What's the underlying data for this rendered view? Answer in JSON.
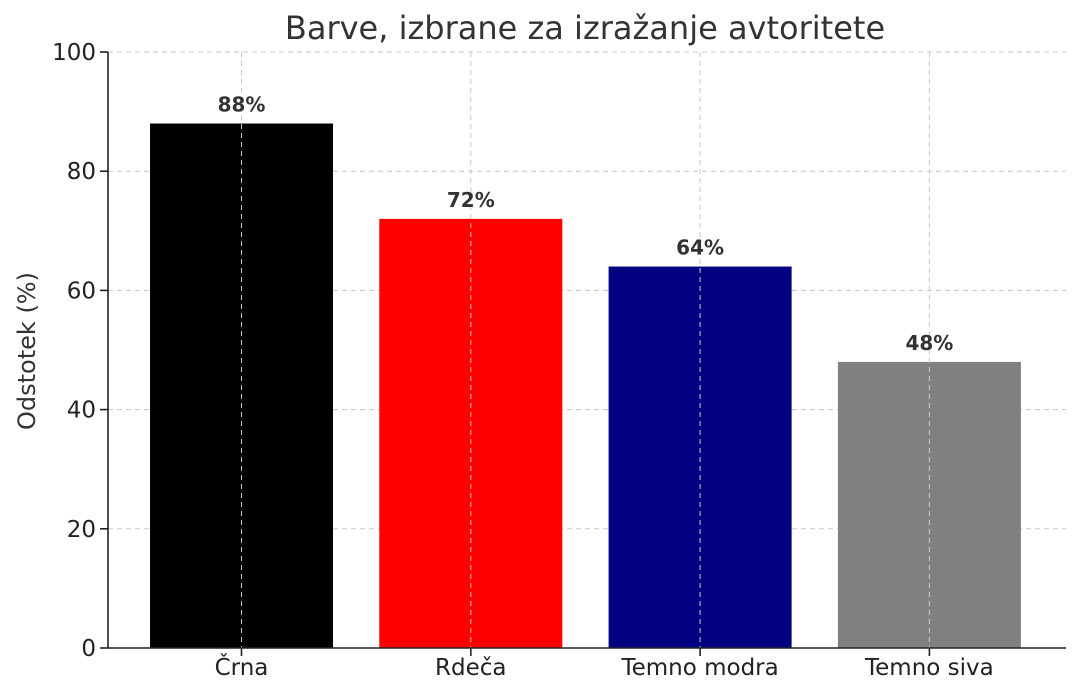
{
  "chart_data": {
    "type": "bar",
    "title": "Barve, izbrane za izražanje avtoritete",
    "xlabel": "",
    "ylabel": "Odstotek (%)",
    "categories": [
      "Črna",
      "Rdeča",
      "Temno modra",
      "Temno siva"
    ],
    "values": [
      88,
      72,
      64,
      48
    ],
    "value_labels": [
      "88%",
      "72%",
      "64%",
      "48%"
    ],
    "bar_colors": [
      "#000000",
      "#ff0000",
      "#000080",
      "#808080"
    ],
    "ylim": [
      0,
      100
    ],
    "yticks": [
      0,
      20,
      40,
      60,
      80,
      100
    ],
    "ytick_labels": [
      "0",
      "20",
      "40",
      "60",
      "80",
      "100"
    ],
    "grid": true
  }
}
